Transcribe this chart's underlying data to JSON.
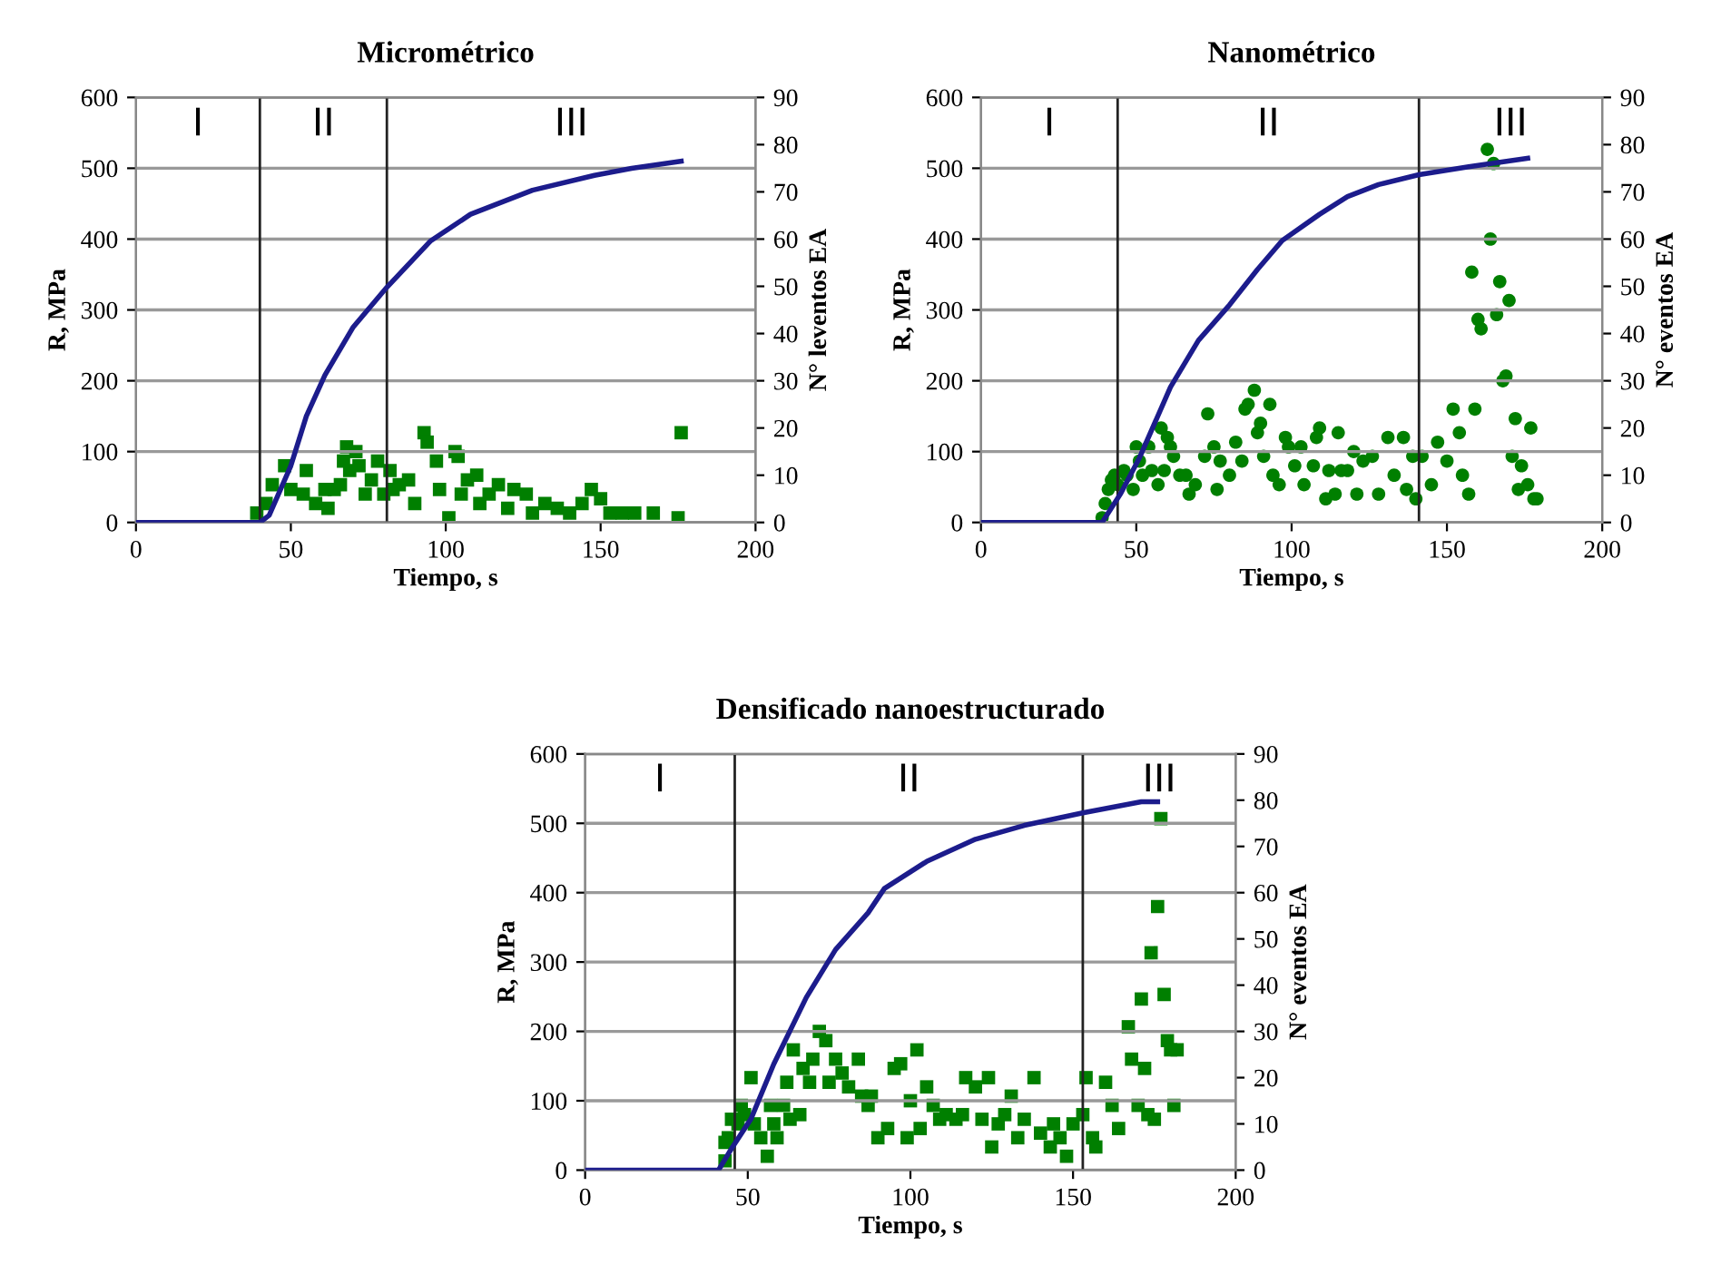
{
  "chart_data": [
    {
      "type": "line",
      "title": "Micrométrico",
      "xlabel": "Tiempo, s",
      "ylabel": "R, MPa",
      "y2label": "N° leventos EA",
      "xlim": [
        0,
        200
      ],
      "xticks": [
        0,
        50,
        100,
        150,
        200
      ],
      "ylim": [
        0,
        600
      ],
      "yticks": [
        0,
        100,
        200,
        300,
        400,
        500,
        600
      ],
      "y2lim": [
        0,
        90
      ],
      "y2ticks": [
        0,
        10,
        20,
        30,
        40,
        50,
        60,
        70,
        80,
        90
      ],
      "grid": "y",
      "ref_lines": [
        {
          "axis": "x",
          "value": 40
        },
        {
          "axis": "x",
          "value": 81
        }
      ],
      "annotations": [
        "I",
        "II",
        "III"
      ],
      "series": [
        {
          "color": "#1c1c8c",
          "x": [
            0,
            40,
            43,
            50,
            55,
            61,
            70,
            81,
            95,
            108,
            128,
            148,
            160,
            176
          ],
          "values": [
            0,
            0,
            10,
            80,
            150,
            208,
            275,
            332,
            397,
            435,
            469,
            490,
            500,
            510
          ]
        },
        {
          "type": "scatter",
          "axis": "y2",
          "marker": "square",
          "color": "#007f00",
          "x": [
            39,
            42,
            44,
            48,
            50,
            54,
            55,
            58,
            61,
            62,
            64,
            66,
            67,
            68,
            69,
            71,
            72,
            74,
            76,
            78,
            80,
            82,
            83,
            85,
            88,
            90,
            93,
            94,
            97,
            98,
            101,
            103,
            104,
            105,
            107,
            110,
            111,
            114,
            117,
            120,
            122,
            126,
            128,
            132,
            136,
            140,
            144,
            147,
            150,
            153,
            157,
            161,
            167,
            175,
            176
          ],
          "values": [
            2,
            4,
            8,
            12,
            7,
            6,
            11,
            4,
            7,
            3,
            7,
            8,
            13,
            16,
            11,
            15,
            12,
            6,
            9,
            13,
            6,
            11,
            7,
            8,
            9,
            4,
            19,
            17,
            13,
            7,
            1,
            15,
            14,
            6,
            9,
            10,
            4,
            6,
            8,
            3,
            7,
            6,
            2,
            4,
            3,
            2,
            4,
            7,
            5,
            2,
            2,
            2,
            2,
            1,
            19
          ]
        }
      ]
    },
    {
      "type": "line",
      "title": "Nanométrico",
      "xlabel": "Tiempo, s",
      "ylabel": "R, MPa",
      "y2label": "N° eventos EA",
      "xlim": [
        0,
        200
      ],
      "xticks": [
        0,
        50,
        100,
        150,
        200
      ],
      "ylim": [
        0,
        600
      ],
      "yticks": [
        0,
        100,
        200,
        300,
        400,
        500,
        600
      ],
      "y2lim": [
        0,
        90
      ],
      "y2ticks": [
        0,
        10,
        20,
        30,
        40,
        50,
        60,
        70,
        80,
        90
      ],
      "grid": "y",
      "ref_lines": [
        {
          "axis": "x",
          "value": 44
        },
        {
          "axis": "x",
          "value": 141
        }
      ],
      "annotations": [
        "I",
        "II",
        "III"
      ],
      "series": [
        {
          "color": "#1c1c8c",
          "x": [
            0,
            39,
            45,
            51,
            61,
            70,
            80,
            89,
            97,
            109,
            118,
            128,
            141,
            157,
            176
          ],
          "values": [
            0,
            0,
            41,
            91,
            191,
            257,
            307,
            357,
            398,
            435,
            460,
            477,
            491,
            502,
            514
          ]
        },
        {
          "type": "scatter",
          "axis": "y2",
          "marker": "circle",
          "color": "#007f00",
          "x": [
            39,
            40,
            41,
            42,
            43,
            44,
            46,
            47,
            49,
            50,
            51,
            52,
            54,
            55,
            57,
            58,
            59,
            60,
            61,
            62,
            64,
            66,
            67,
            69,
            72,
            73,
            75,
            76,
            77,
            80,
            82,
            84,
            85,
            86,
            88,
            89,
            90,
            91,
            93,
            94,
            96,
            98,
            99,
            101,
            103,
            104,
            107,
            108,
            109,
            111,
            112,
            114,
            115,
            116,
            118,
            120,
            121,
            123,
            126,
            128,
            131,
            133,
            136,
            137,
            139,
            140,
            142,
            145,
            147,
            150,
            152,
            154,
            155,
            157,
            158,
            159,
            160,
            161,
            163,
            164,
            165,
            166,
            167,
            168,
            169,
            170,
            171,
            172,
            173,
            174,
            176,
            177,
            178,
            179
          ],
          "values": [
            1,
            4,
            7,
            9,
            10,
            8,
            11,
            10,
            7,
            16,
            13,
            10,
            16,
            11,
            8,
            20,
            11,
            18,
            16,
            14,
            10,
            10,
            6,
            8,
            14,
            23,
            16,
            7,
            13,
            10,
            17,
            13,
            24,
            25,
            28,
            19,
            21,
            14,
            25,
            10,
            8,
            18,
            16,
            12,
            16,
            8,
            12,
            18,
            20,
            5,
            11,
            6,
            19,
            11,
            11,
            15,
            6,
            13,
            14,
            6,
            18,
            10,
            18,
            7,
            14,
            5,
            14,
            8,
            17,
            13,
            24,
            19,
            10,
            6,
            53,
            24,
            43,
            41,
            79,
            60,
            76,
            44,
            51,
            30,
            31,
            47,
            14,
            22,
            7,
            12,
            8,
            20,
            5,
            5
          ]
        }
      ]
    },
    {
      "type": "line",
      "title": "Densificado nanoestructurado",
      "xlabel": "Tiempo, s",
      "ylabel": "R, MPa",
      "y2label": "N° eventos EA",
      "xlim": [
        0,
        200
      ],
      "xticks": [
        0,
        50,
        100,
        150,
        200
      ],
      "ylim": [
        0,
        600
      ],
      "yticks": [
        0,
        100,
        200,
        300,
        400,
        500,
        600
      ],
      "y2lim": [
        0,
        90
      ],
      "y2ticks": [
        0,
        10,
        20,
        30,
        40,
        50,
        60,
        70,
        80,
        90
      ],
      "grid": "y",
      "ref_lines": [
        {
          "axis": "x",
          "value": 46
        },
        {
          "axis": "x",
          "value": 153
        }
      ],
      "annotations": [
        "I",
        "II",
        "III"
      ],
      "series": [
        {
          "color": "#1c1c8c",
          "x": [
            0,
            41,
            45,
            51,
            58,
            68,
            77,
            87,
            92,
            105,
            120,
            135,
            153,
            171,
            176
          ],
          "values": [
            0,
            0,
            31,
            74,
            153,
            249,
            318,
            371,
            406,
            445,
            477,
            497,
            515,
            531,
            531
          ]
        },
        {
          "type": "scatter",
          "axis": "y2",
          "marker": "square",
          "color": "#007f00",
          "x": [
            43,
            43,
            44,
            45,
            47,
            48,
            49,
            51,
            52,
            54,
            56,
            57,
            58,
            59,
            61,
            62,
            63,
            64,
            66,
            67,
            69,
            70,
            72,
            74,
            75,
            77,
            79,
            81,
            84,
            85,
            87,
            88,
            90,
            93,
            95,
            97,
            99,
            100,
            102,
            103,
            105,
            107,
            109,
            111,
            114,
            116,
            117,
            120,
            122,
            124,
            125,
            127,
            129,
            131,
            133,
            135,
            138,
            140,
            143,
            144,
            146,
            148,
            150,
            153,
            154,
            156,
            157,
            160,
            162,
            164,
            167,
            168,
            170,
            171,
            172,
            173,
            174,
            175,
            176,
            177,
            178,
            179,
            180,
            181,
            182
          ],
          "values": [
            2,
            6,
            7,
            11,
            10,
            14,
            12,
            20,
            10,
            7,
            3,
            14,
            10,
            7,
            14,
            19,
            11,
            26,
            12,
            22,
            19,
            24,
            30,
            28,
            19,
            24,
            21,
            18,
            24,
            16,
            14,
            16,
            7,
            9,
            22,
            23,
            7,
            15,
            26,
            9,
            18,
            14,
            11,
            12,
            11,
            12,
            20,
            18,
            11,
            20,
            5,
            10,
            12,
            16,
            7,
            11,
            20,
            8,
            5,
            10,
            7,
            3,
            10,
            12,
            20,
            7,
            5,
            19,
            14,
            9,
            31,
            24,
            14,
            37,
            22,
            12,
            47,
            11,
            57,
            76,
            38,
            28,
            26,
            14,
            26
          ]
        }
      ]
    }
  ]
}
